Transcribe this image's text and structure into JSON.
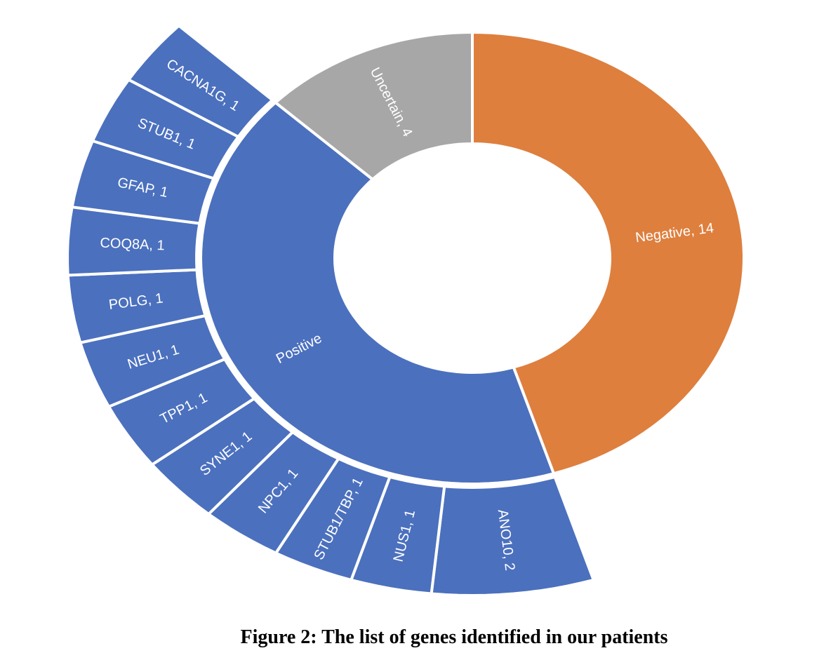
{
  "caption": "Figure 2: The list of genes identified in our patients",
  "chart_data": {
    "type": "sunburst",
    "description": "Two-level doughnut (sunburst) chart of genetic test results; outer ring subdivides the Positive category into individual genes",
    "total": 31,
    "start_angle_deg": 0,
    "direction": "clockwise",
    "label_color": "#FFFFFF",
    "separator_color": "#FFFFFF",
    "inner_ring": [
      {
        "name": "Negative",
        "value": 14,
        "label": "Negative, 14",
        "color": "#DE7F3E"
      },
      {
        "name": "Positive",
        "value": 13,
        "label": "Positive",
        "color": "#4B70BE"
      },
      {
        "name": "Uncertain",
        "value": 4,
        "label": "Uncertain, 4",
        "color": "#A7A7A7"
      }
    ],
    "outer_ring": {
      "parent": "Positive",
      "color": "#4B70BE",
      "segments": [
        {
          "name": "CACNA1G",
          "value": 1,
          "label": "CACNA1G, 1"
        },
        {
          "name": "STUB1",
          "value": 1,
          "label": "STUB1, 1"
        },
        {
          "name": "GFAP",
          "value": 1,
          "label": "GFAP, 1"
        },
        {
          "name": "COQ8A",
          "value": 1,
          "label": "COQ8A, 1"
        },
        {
          "name": "POLG",
          "value": 1,
          "label": "POLG, 1"
        },
        {
          "name": "NEU1",
          "value": 1,
          "label": "NEU1, 1"
        },
        {
          "name": "TPP1",
          "value": 1,
          "label": "TPP1, 1"
        },
        {
          "name": "SYNE1",
          "value": 1,
          "label": "SYNE1, 1"
        },
        {
          "name": "NPC1",
          "value": 1,
          "label": "NPC1, 1"
        },
        {
          "name": "STUB1/TBP",
          "value": 1,
          "label": "STUB1/TBP, 1"
        },
        {
          "name": "NUS1",
          "value": 1,
          "label": "NUS1, 1"
        },
        {
          "name": "ANO10",
          "value": 2,
          "label": "ANO10, 2"
        }
      ]
    }
  }
}
